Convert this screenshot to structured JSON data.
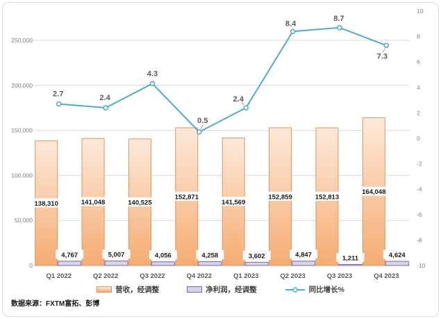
{
  "chart_data": {
    "type": "combo",
    "title": "",
    "categories": [
      "Q1 2022",
      "Q2 2022",
      "Q3 2022",
      "Q4 2022",
      "Q1 2023",
      "Q2 2023",
      "Q3 2023",
      "Q4 2023"
    ],
    "series": [
      {
        "name": "营收，经调整",
        "type": "bar",
        "axis": "left",
        "values": [
          138310,
          141048,
          140525,
          152871,
          141569,
          152859,
          152813,
          164048
        ],
        "labels": [
          "138,310",
          "141,048",
          "140,525",
          "152,871",
          "141,569",
          "152,859",
          "152,813",
          "164,048"
        ]
      },
      {
        "name": "净利润，经调整",
        "type": "bar",
        "axis": "left",
        "values": [
          4767,
          5007,
          4056,
          4258,
          3602,
          4847,
          1211,
          4624
        ],
        "labels": [
          "4,767",
          "5,007",
          "4,056",
          "4,258",
          "3,602",
          "4,847",
          "1,211",
          "4,624"
        ]
      },
      {
        "name": "同比增长%",
        "type": "line",
        "axis": "right",
        "values": [
          2.7,
          2.4,
          4.3,
          0.5,
          2.4,
          8.4,
          8.7,
          7.3
        ],
        "labels": [
          "2.7",
          "2.4",
          "4.3",
          "0.5",
          "2.4",
          "8.4",
          "8.7",
          "7.3"
        ]
      }
    ],
    "left_axis": {
      "min": 0,
      "max": 250000,
      "step": 50000,
      "ticks": [
        0,
        50000,
        100000,
        150000,
        200000,
        250000
      ],
      "tick_labels": [
        "0",
        "50,000",
        "100,000",
        "150,000",
        "200,000",
        "250,000"
      ]
    },
    "right_axis": {
      "min": -10,
      "max": 10,
      "step": 2,
      "ticks": [
        -10,
        -8,
        -6,
        -4,
        -2,
        0,
        2,
        4,
        6,
        8,
        10
      ],
      "tick_labels": [
        "-10",
        "-8",
        "-6",
        "-4",
        "-2",
        "0",
        "2",
        "4",
        "6",
        "8",
        "10"
      ]
    },
    "grid": "horizontal",
    "legend_position": "bottom"
  },
  "footer": {
    "source_text": "数据来源：FXTM富拓、彭博"
  },
  "colors": {
    "revenue_top": "#fdeadb",
    "revenue_bottom": "#f5ac72",
    "revenue_border": "#e1935a",
    "profit_fill": "#d9d2ec",
    "profit_border": "#7b68a6",
    "growth_line": "#4bacc6",
    "gridline": "#d9d9d9",
    "axis_line": "#bfbfbf",
    "axis_text": "#7f7f7f",
    "category_text": "#595959",
    "bar_label_text": "#1a1a1a",
    "line_label_text": "#595959",
    "leader_line": "#a6a6a6"
  }
}
